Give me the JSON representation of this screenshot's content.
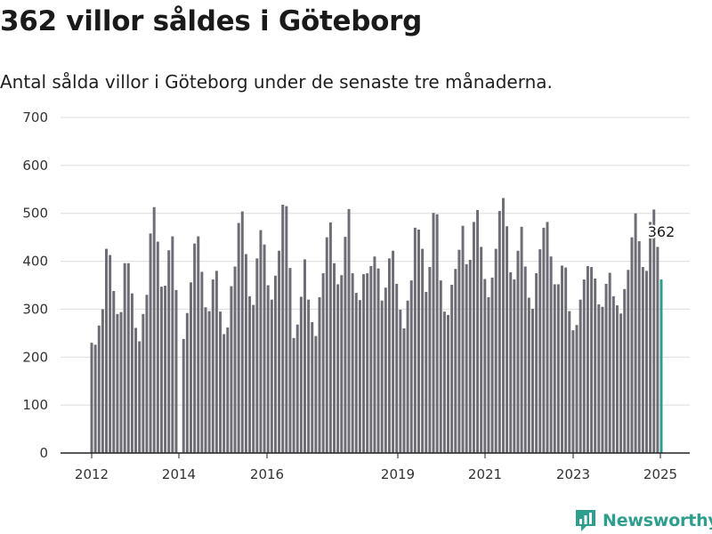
{
  "title": "362 villor såldes i Göteborg",
  "subtitle": "Antal sålda villor i Göteborg under de senaste tre månaderna.",
  "brand": {
    "name": "Newsworthy",
    "color": "#2e9e8e"
  },
  "chart_data": {
    "type": "bar",
    "ylim": [
      0,
      700
    ],
    "yticks": [
      0,
      100,
      200,
      300,
      400,
      500,
      600,
      700
    ],
    "xticks": [
      "2012",
      "2014",
      "2016",
      "2019",
      "2021",
      "2023",
      "2025"
    ],
    "grid": true,
    "bar_color": "#6e6d75",
    "highlight_color": "#2e9e8e",
    "highlight_label": "362",
    "values": [
      230,
      226,
      266,
      300,
      426,
      413,
      338,
      290,
      294,
      396,
      396,
      333,
      261,
      233,
      290,
      330,
      458,
      513,
      441,
      347,
      349,
      423,
      452,
      340,
      0,
      238,
      292,
      356,
      437,
      452,
      378,
      304,
      296,
      362,
      380,
      295,
      248,
      262,
      348,
      389,
      480,
      504,
      415,
      327,
      309,
      406,
      465,
      435,
      350,
      320,
      370,
      422,
      518,
      515,
      386,
      240,
      268,
      326,
      404,
      320,
      273,
      244,
      325,
      375,
      450,
      481,
      396,
      352,
      371,
      451,
      509,
      375,
      334,
      319,
      373,
      375,
      390,
      410,
      385,
      318,
      345,
      406,
      422,
      353,
      299,
      260,
      318,
      360,
      470,
      466,
      426,
      336,
      388,
      501,
      498,
      360,
      295,
      288,
      351,
      384,
      424,
      474,
      394,
      403,
      482,
      507,
      430,
      363,
      325,
      366,
      426,
      505,
      532,
      473,
      377,
      362,
      422,
      472,
      389,
      324,
      301,
      375,
      425,
      470,
      482,
      410,
      352,
      352,
      391,
      387,
      296,
      256,
      267,
      320,
      362,
      390,
      388,
      364,
      310,
      305,
      353,
      376,
      327,
      308,
      291,
      342,
      382,
      450,
      500,
      442,
      388,
      380,
      482,
      508,
      430,
      362
    ]
  }
}
